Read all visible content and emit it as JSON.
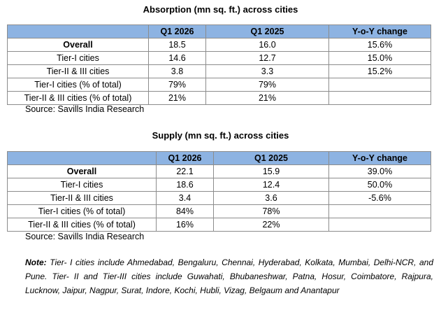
{
  "absorption": {
    "title": "Absorption (mn sq. ft.) across cities",
    "headers": [
      "",
      "Q1 2026",
      "Q1 2025",
      "Y-o-Y change"
    ],
    "rows": [
      [
        "Overall",
        "18.5",
        "16.0",
        "15.6%"
      ],
      [
        "Tier-I cities",
        "14.6",
        "12.7",
        "15.0%"
      ],
      [
        "Tier-II & III cities",
        "3.8",
        "3.3",
        "15.2%"
      ],
      [
        "Tier-I cities (% of total)",
        "79%",
        "79%",
        ""
      ],
      [
        "Tier-II & III cities (% of total)",
        "21%",
        "21%",
        ""
      ]
    ],
    "source": "Source: Savills India Research"
  },
  "supply": {
    "title": "Supply (mn sq. ft.) across cities",
    "headers": [
      "",
      "Q1 2026",
      "Q1 2025",
      "Y-o-Y change"
    ],
    "rows": [
      [
        "Overall",
        "22.1",
        "15.9",
        "39.0%"
      ],
      [
        "Tier-I cities",
        "18.6",
        "12.4",
        "50.0%"
      ],
      [
        "Tier-II & III cities",
        "3.4",
        "3.6",
        "-5.6%"
      ],
      [
        "Tier-I cities (% of total)",
        "84%",
        "78%",
        ""
      ],
      [
        "Tier-II & III cities (% of total)",
        "16%",
        "22%",
        ""
      ]
    ],
    "source": "Source: Savills India Research"
  },
  "note": {
    "label": "Note:",
    "text": " Tier- I cities include Ahmedabad, Bengaluru, Chennai, Hyderabad, Kolkata, Mumbai, Delhi-NCR, and Pune. Tier- II and Tier-III cities include Guwahati, Bhubaneshwar, Patna, Hosur, Coimbatore, Rajpura, Lucknow, Jaipur, Nagpur, Surat, Indore, Kochi, Hubli, Vizag, Belgaum and Anantapur"
  },
  "colors": {
    "header_bg": "#8db3e2"
  }
}
